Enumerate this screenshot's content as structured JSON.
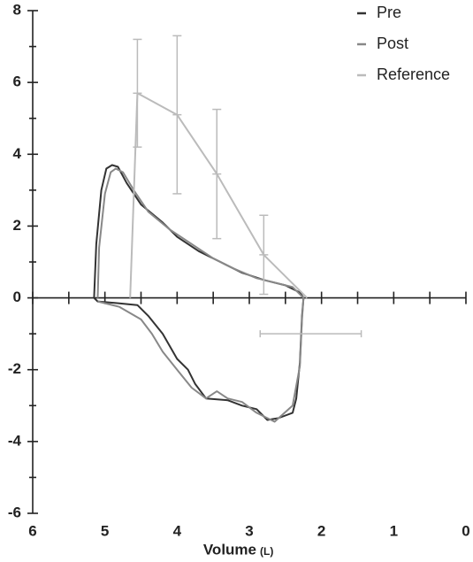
{
  "chart_data": {
    "type": "line",
    "x_label": "Volume",
    "x_unit": "(L)",
    "xlim": [
      6,
      0
    ],
    "ylim": [
      -6,
      8
    ],
    "xticks": [
      6,
      5,
      4,
      3,
      2,
      1,
      0
    ],
    "xticks_minor": [
      5.5,
      4.5,
      3.5,
      2.5,
      1.5,
      0.5
    ],
    "yticks": [
      -6,
      -4,
      -2,
      0,
      2,
      4,
      6,
      8
    ],
    "yticks_minor": [
      -5,
      -3,
      -1,
      1,
      3,
      5,
      7
    ],
    "legend": "top-right",
    "series": [
      {
        "name": "Pre",
        "color": "#333333",
        "x": [
          5.15,
          5.12,
          5.05,
          4.98,
          4.9,
          4.82,
          4.7,
          4.5,
          4.2,
          4.0,
          3.7,
          3.4,
          3.1,
          2.8,
          2.5,
          2.3,
          2.25,
          2.27,
          2.3,
          2.35,
          2.4,
          2.6,
          2.75,
          2.9,
          3.1,
          3.3,
          3.6,
          3.75,
          3.85,
          4.0,
          4.2,
          4.4,
          4.55,
          4.8,
          5.1,
          5.15
        ],
        "y": [
          0,
          1.5,
          3.0,
          3.6,
          3.7,
          3.65,
          3.2,
          2.6,
          2.1,
          1.7,
          1.3,
          1.0,
          0.7,
          0.5,
          0.35,
          0.15,
          0.0,
          -0.5,
          -1.8,
          -2.8,
          -3.2,
          -3.35,
          -3.4,
          -3.1,
          -3.0,
          -2.85,
          -2.8,
          -2.4,
          -2.0,
          -1.7,
          -1.0,
          -0.5,
          -0.2,
          -0.15,
          -0.1,
          0
        ]
      },
      {
        "name": "Post",
        "color": "#888888",
        "x": [
          5.1,
          5.08,
          5.0,
          4.92,
          4.85,
          4.75,
          4.6,
          4.4,
          4.1,
          3.8,
          3.5,
          3.2,
          2.9,
          2.6,
          2.4,
          2.25,
          2.27,
          2.3,
          2.4,
          2.65,
          2.9,
          3.1,
          3.3,
          3.45,
          3.6,
          3.8,
          4.0,
          4.2,
          4.35,
          4.5,
          4.8,
          5.1
        ],
        "y": [
          0,
          1.4,
          2.9,
          3.5,
          3.6,
          3.5,
          3.0,
          2.4,
          1.9,
          1.5,
          1.1,
          0.8,
          0.55,
          0.4,
          0.3,
          0.0,
          -0.6,
          -1.9,
          -3.0,
          -3.45,
          -3.2,
          -2.9,
          -2.8,
          -2.6,
          -2.8,
          -2.5,
          -2.0,
          -1.5,
          -1.0,
          -0.6,
          -0.25,
          -0.1
        ]
      },
      {
        "name": "Reference",
        "color": "#bbbbbb",
        "x": [
          4.65,
          4.55,
          4.0,
          3.45,
          2.8,
          2.2
        ],
        "y": [
          0,
          5.7,
          5.1,
          3.45,
          1.2,
          0
        ],
        "yerr": [
          null,
          1.5,
          2.2,
          1.8,
          1.1,
          null
        ],
        "x_error_point": {
          "x": 2.15,
          "y": -1,
          "xerr": 0.7
        }
      }
    ]
  }
}
